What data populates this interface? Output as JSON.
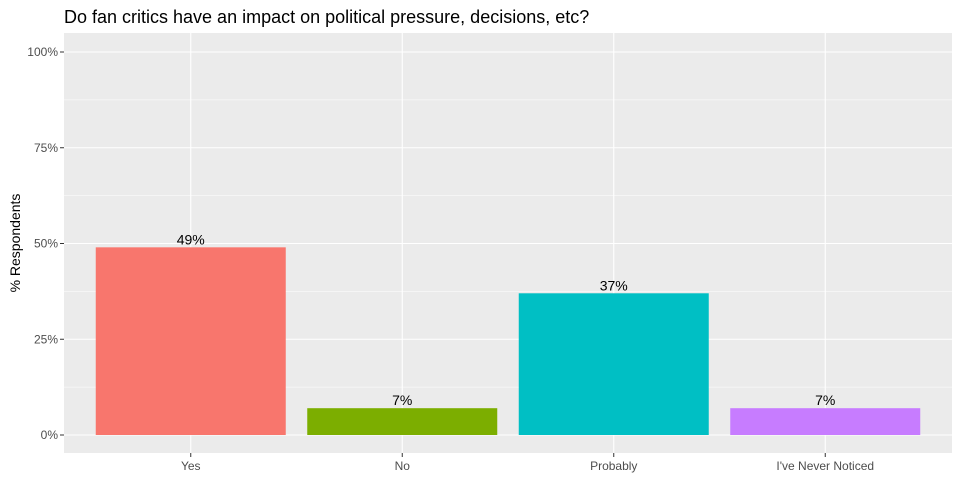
{
  "chart_data": {
    "type": "bar",
    "title": "Do fan critics have an impact on political pressure, decisions, etc?",
    "xlabel": "",
    "ylabel": "% Respondents",
    "categories": [
      "Yes",
      "No",
      "Probably",
      "I've Never Noticed"
    ],
    "values": [
      49,
      7,
      37,
      7
    ],
    "data_labels": [
      "49%",
      "7%",
      "37%",
      "7%"
    ],
    "colors": [
      "#F8766D",
      "#7CAE00",
      "#00BFC4",
      "#C77CFF"
    ],
    "ylim": [
      0,
      100
    ],
    "y_ticks": [
      0,
      25,
      50,
      75,
      100
    ],
    "y_tick_labels": [
      "0%",
      "25%",
      "50%",
      "75%",
      "100%"
    ],
    "grid": true,
    "legend": "none"
  }
}
